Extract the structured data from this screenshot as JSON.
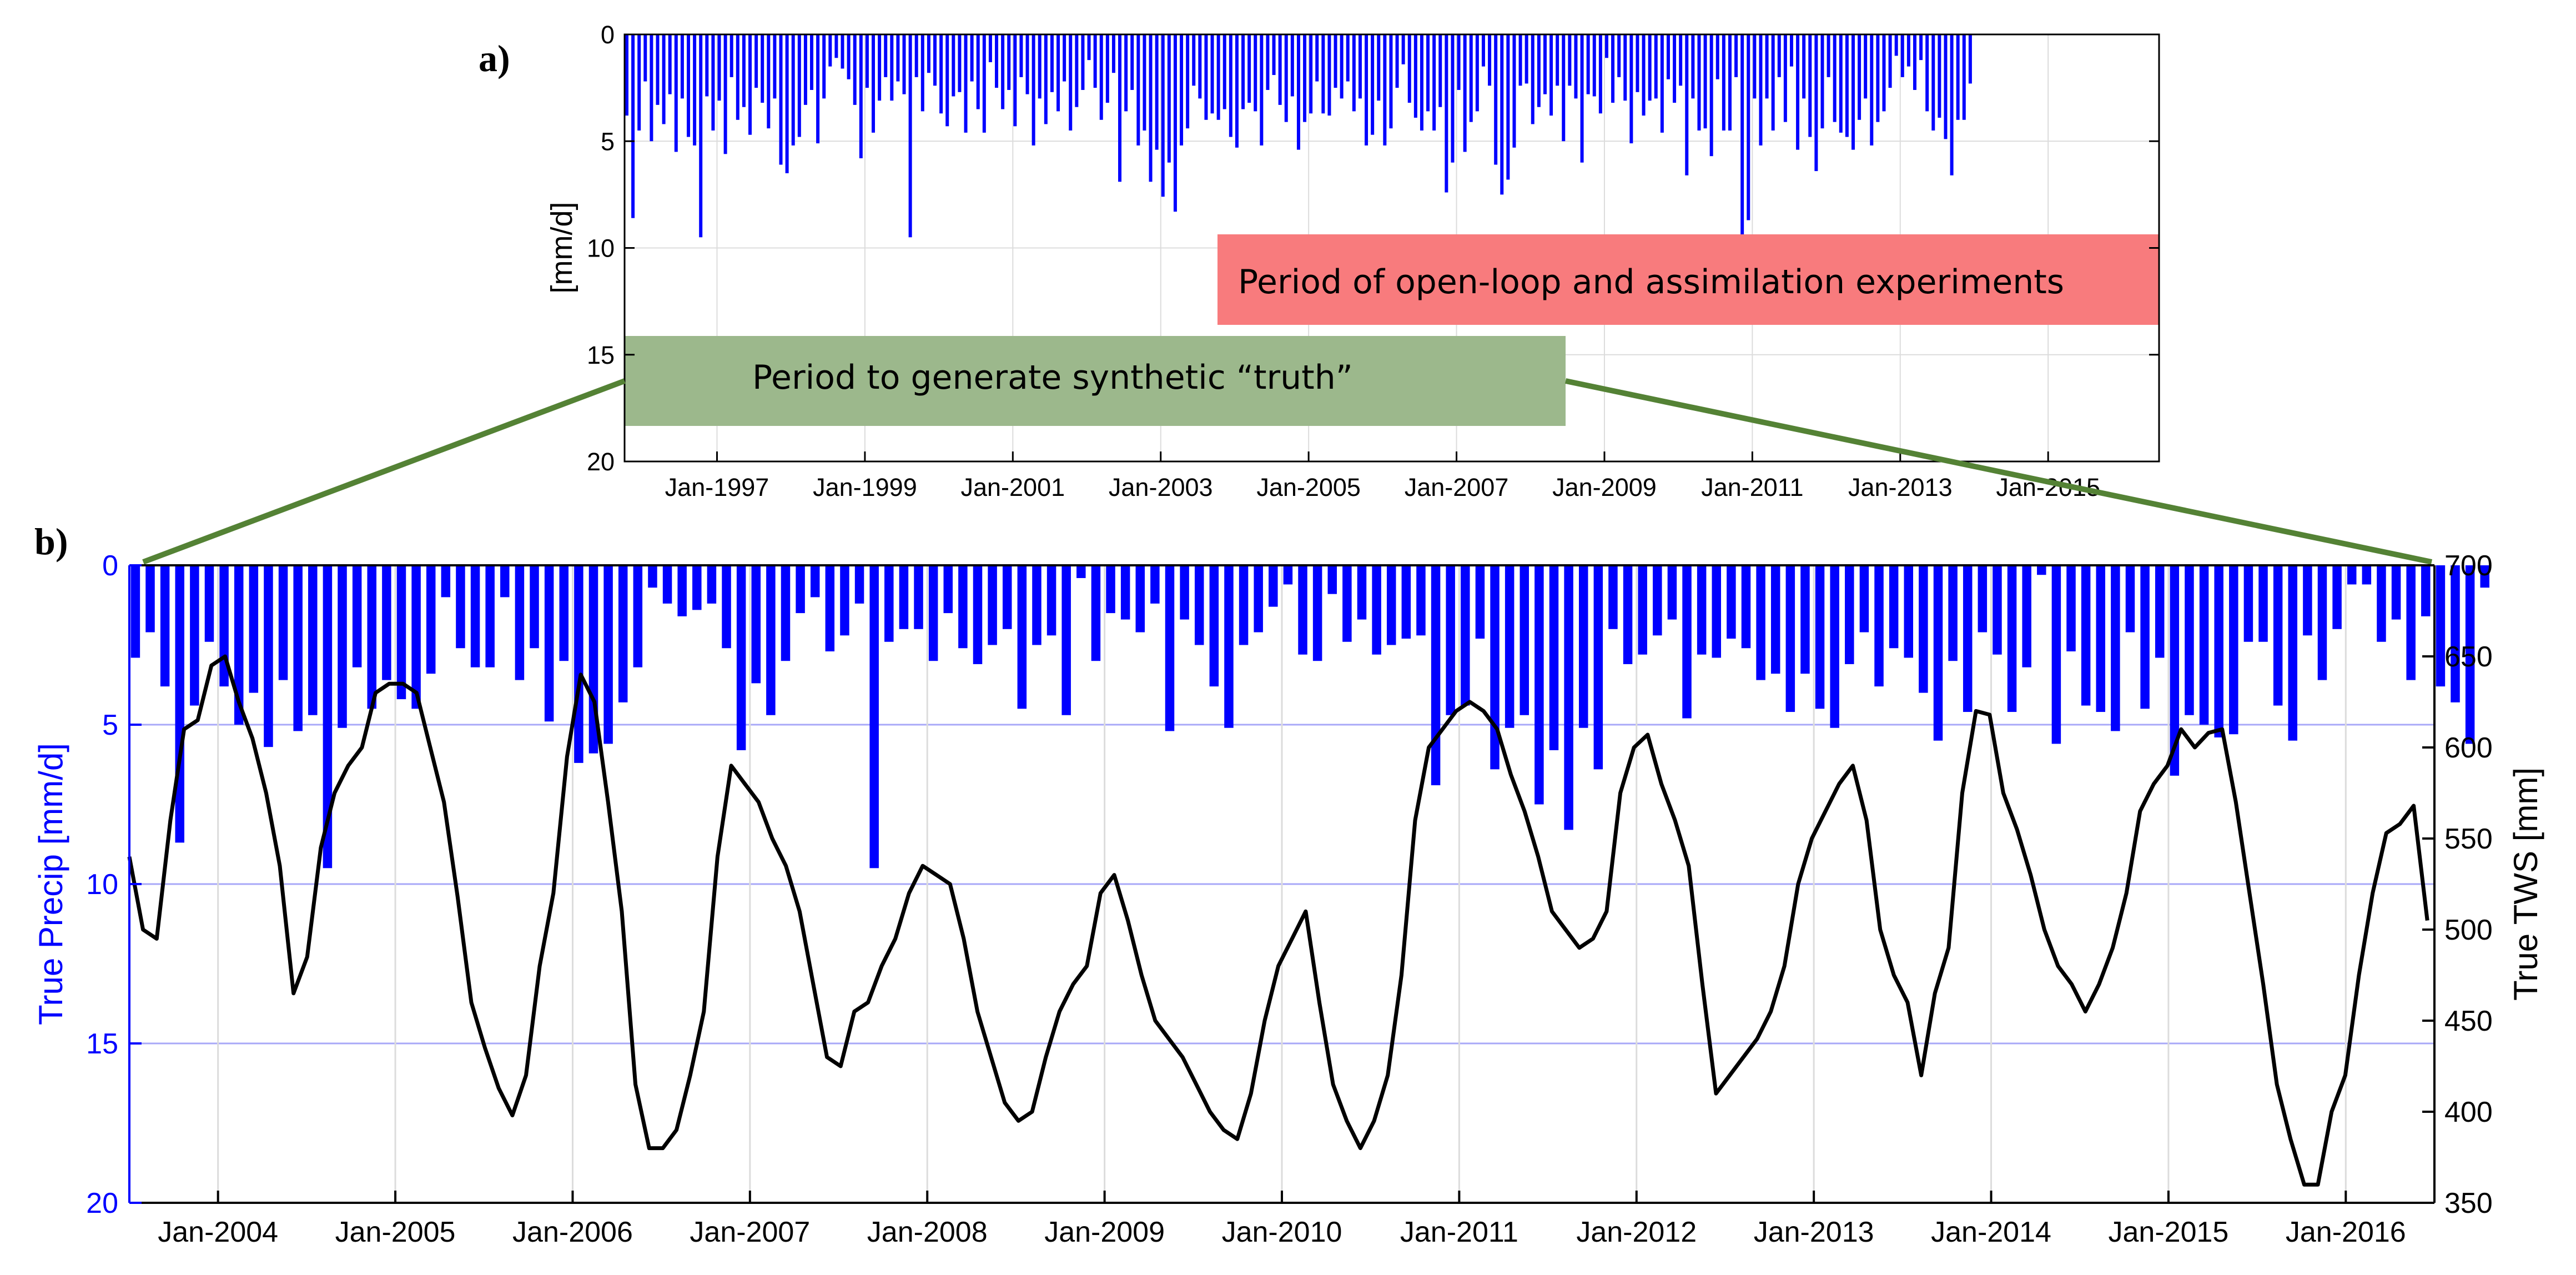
{
  "chart_data": [
    {
      "panel": "a)",
      "type": "bar",
      "ylabel": "[mm/d]",
      "ylim": [
        0,
        20
      ],
      "y_reversed": true,
      "yticks": [
        0,
        5,
        10,
        15,
        20
      ],
      "grid": true,
      "x_start": 1995.75,
      "x_end": 2016.5,
      "xtick_positions": [
        1997,
        1999,
        2001,
        2003,
        2005,
        2007,
        2009,
        2011,
        2013,
        2015
      ],
      "xtick_labels": [
        "Jan-1997",
        "Jan-1999",
        "Jan-2001",
        "Jan-2003",
        "Jan-2005",
        "Jan-2007",
        "Jan-2009",
        "Jan-2011",
        "Jan-2013",
        "Jan-2015"
      ],
      "bar_color": "#0000ff",
      "values": [
        3.8,
        8.6,
        4.5,
        2.2,
        5.0,
        3.3,
        4.2,
        2.8,
        5.5,
        3.0,
        4.8,
        5.2,
        9.5,
        2.9,
        4.5,
        3.1,
        5.6,
        2.0,
        4.0,
        3.4,
        4.7,
        2.5,
        3.2,
        4.4,
        3.0,
        6.1,
        6.5,
        5.2,
        4.8,
        3.3,
        2.6,
        5.1,
        3.0,
        1.5,
        1.1,
        1.6,
        2.1,
        3.3,
        5.8,
        2.5,
        4.6,
        3.1,
        2.0,
        3.1,
        2.2,
        2.8,
        9.5,
        2.0,
        3.6,
        1.8,
        2.4,
        3.7,
        4.3,
        2.9,
        2.7,
        4.6,
        2.2,
        3.5,
        4.6,
        1.3,
        2.5,
        3.5,
        2.6,
        4.3,
        2.0,
        2.8,
        5.2,
        3.0,
        4.2,
        2.7,
        3.6,
        2.2,
        4.5,
        3.4,
        2.6,
        1.2,
        2.5,
        4.0,
        3.2,
        1.8,
        6.9,
        3.6,
        2.6,
        5.2,
        4.5,
        6.9,
        5.4,
        7.6,
        6.0,
        8.3,
        5.2,
        4.4,
        2.4,
        3.0,
        4.0,
        3.7,
        4.0,
        3.5,
        4.8,
        5.3,
        3.5,
        3.2,
        3.6,
        5.2,
        2.6,
        1.9,
        3.3,
        4.1,
        2.9,
        5.4,
        4.1,
        3.7,
        2.2,
        3.7,
        3.8,
        2.5,
        3.0,
        2.2,
        3.6,
        3.0,
        5.2,
        4.7,
        3.1,
        5.2,
        4.4,
        2.5,
        1.4,
        3.2,
        3.9,
        4.5,
        3.6,
        4.5,
        3.4,
        7.4,
        6.0,
        2.6,
        5.5,
        4.1,
        3.6,
        1.5,
        2.4,
        6.1,
        7.5,
        6.8,
        5.3,
        2.4,
        2.3,
        4.2,
        3.4,
        2.8,
        3.8,
        2.4,
        5.0,
        2.4,
        3.0,
        6.0,
        2.8,
        2.9,
        3.7,
        1.1,
        3.2,
        2.0,
        3.1,
        5.1,
        2.7,
        3.8,
        3.1,
        3.0,
        4.6,
        2.1,
        3.2,
        2.4,
        6.6,
        3.0,
        4.5,
        4.4,
        5.7,
        2.1,
        4.5,
        4.5,
        2.0,
        10.2,
        8.7,
        3.0,
        5.2,
        3.0,
        4.5,
        2.0,
        4.1,
        1.5,
        5.4,
        3.0,
        4.8,
        6.4,
        4.4,
        2.0,
        4.1,
        4.6,
        4.8,
        5.4,
        4.0,
        3.0,
        5.2,
        4.1,
        3.6,
        2.5,
        1.0,
        2.0,
        1.5,
        2.6,
        1.2,
        3.6,
        4.5,
        3.9,
        4.9,
        6.6,
        4.0,
        4.0,
        2.3
      ],
      "annotations": [
        {
          "text": "Period of open-loop and assimilation experiments",
          "color": "#f87b7d",
          "x_from": 2003.8,
          "x_to": 2016.5
        },
        {
          "text": "Period to generate synthetic “truth”",
          "color": "#9cb88c",
          "x_from": 1995.75,
          "x_to": 2008.55
        }
      ]
    },
    {
      "panel": "b)",
      "type": "bar+line",
      "ylabel_left": "True Precip [mm/d]",
      "ylabel_right": "True TWS [mm]",
      "ylim_left": [
        0,
        20
      ],
      "left_reversed": true,
      "yticks_left": [
        0,
        5,
        10,
        15,
        20
      ],
      "ylim_right": [
        350,
        700
      ],
      "yticks_right": [
        350,
        400,
        450,
        500,
        550,
        600,
        650,
        700
      ],
      "x_start": 2003.5,
      "x_end": 2016.5,
      "xtick_positions": [
        2004,
        2005,
        2006,
        2007,
        2008,
        2009,
        2010,
        2011,
        2012,
        2013,
        2014,
        2015,
        2016
      ],
      "xtick_labels": [
        "Jan-2004",
        "Jan-2005",
        "Jan-2006",
        "Jan-2007",
        "Jan-2008",
        "Jan-2009",
        "Jan-2010",
        "Jan-2011",
        "Jan-2012",
        "Jan-2013",
        "Jan-2014",
        "Jan-2015",
        "Jan-2016"
      ],
      "bar_color": "#0000ff",
      "line_color": "#000000",
      "grid_color": "#a8a8f8",
      "series": [
        {
          "name": "True Precip [mm/d]",
          "axis": "left",
          "kind": "bar",
          "values": [
            2.9,
            2.1,
            3.8,
            8.7,
            4.4,
            2.4,
            3.8,
            5.0,
            4.0,
            5.7,
            3.6,
            5.2,
            4.7,
            9.5,
            5.1,
            3.2,
            4.5,
            3.6,
            4.2,
            4.5,
            3.4,
            1.0,
            2.6,
            3.2,
            3.2,
            1.0,
            3.6,
            2.6,
            4.9,
            3.0,
            6.2,
            5.9,
            5.6,
            4.3,
            3.2,
            0.7,
            1.2,
            1.6,
            1.4,
            1.2,
            2.6,
            5.8,
            3.7,
            4.7,
            3.0,
            1.5,
            1.0,
            2.7,
            2.2,
            1.2,
            9.5,
            2.4,
            2.0,
            2.0,
            3.0,
            1.5,
            2.6,
            3.1,
            2.5,
            2.0,
            4.5,
            2.5,
            2.2,
            4.7,
            0.4,
            3.0,
            1.5,
            1.7,
            2.1,
            1.2,
            5.2,
            1.7,
            2.5,
            3.8,
            5.1,
            2.5,
            2.1,
            1.3,
            0.6,
            2.8,
            3.0,
            0.9,
            2.4,
            1.7,
            2.8,
            2.5,
            2.3,
            2.2,
            6.9,
            4.7,
            4.4,
            2.3,
            6.4,
            5.1,
            4.7,
            7.5,
            5.8,
            8.3,
            5.1,
            6.4,
            2.0,
            3.1,
            2.8,
            2.2,
            1.7,
            4.8,
            2.8,
            2.9,
            2.3,
            2.6,
            3.6,
            3.4,
            4.6,
            3.4,
            4.5,
            5.1,
            3.1,
            2.1,
            3.8,
            2.6,
            2.9,
            4.0,
            5.5,
            3.0,
            4.6,
            2.1,
            2.8,
            4.6,
            3.2,
            0.3,
            5.6,
            2.7,
            4.4,
            4.6,
            5.2,
            2.1,
            4.5,
            2.9,
            6.6,
            4.7,
            5.0,
            5.4,
            5.3,
            2.4,
            2.4,
            4.4,
            5.5,
            2.2,
            3.6,
            2.0,
            0.6,
            0.6,
            2.4,
            1.7,
            3.6,
            1.6,
            3.8,
            4.3,
            5.6,
            0.7
          ]
        },
        {
          "name": "True TWS [mm]",
          "axis": "right",
          "kind": "line",
          "values": [
            540,
            500,
            495,
            560,
            610,
            615,
            645,
            650,
            625,
            605,
            575,
            535,
            465,
            485,
            545,
            575,
            590,
            600,
            630,
            635,
            635,
            630,
            600,
            570,
            518,
            460,
            435,
            413,
            398,
            420,
            480,
            520,
            595,
            640,
            625,
            570,
            510,
            415,
            380,
            380,
            390,
            420,
            455,
            540,
            590,
            580,
            570,
            550,
            535,
            510,
            470,
            430,
            425,
            455,
            460,
            480,
            495,
            520,
            535,
            530,
            525,
            495,
            455,
            430,
            405,
            395,
            400,
            430,
            455,
            470,
            480,
            520,
            530,
            505,
            475,
            450,
            440,
            430,
            415,
            400,
            390,
            385,
            410,
            450,
            480,
            495,
            510,
            460,
            415,
            395,
            380,
            395,
            420,
            475,
            560,
            600,
            610,
            620,
            625,
            620,
            610,
            585,
            565,
            540,
            510,
            500,
            490,
            495,
            510,
            575,
            600,
            607,
            580,
            560,
            535,
            470,
            410,
            420,
            430,
            440,
            455,
            480,
            525,
            550,
            565,
            580,
            590,
            560,
            500,
            475,
            460,
            420,
            465,
            490,
            575,
            620,
            618,
            575,
            555,
            530,
            500,
            480,
            470,
            455,
            470,
            490,
            520,
            565,
            580,
            590,
            610,
            600,
            608,
            610,
            570,
            520,
            470,
            415,
            385,
            360,
            360,
            400,
            420,
            475,
            520,
            553,
            558,
            568,
            505
          ]
        }
      ]
    }
  ]
}
